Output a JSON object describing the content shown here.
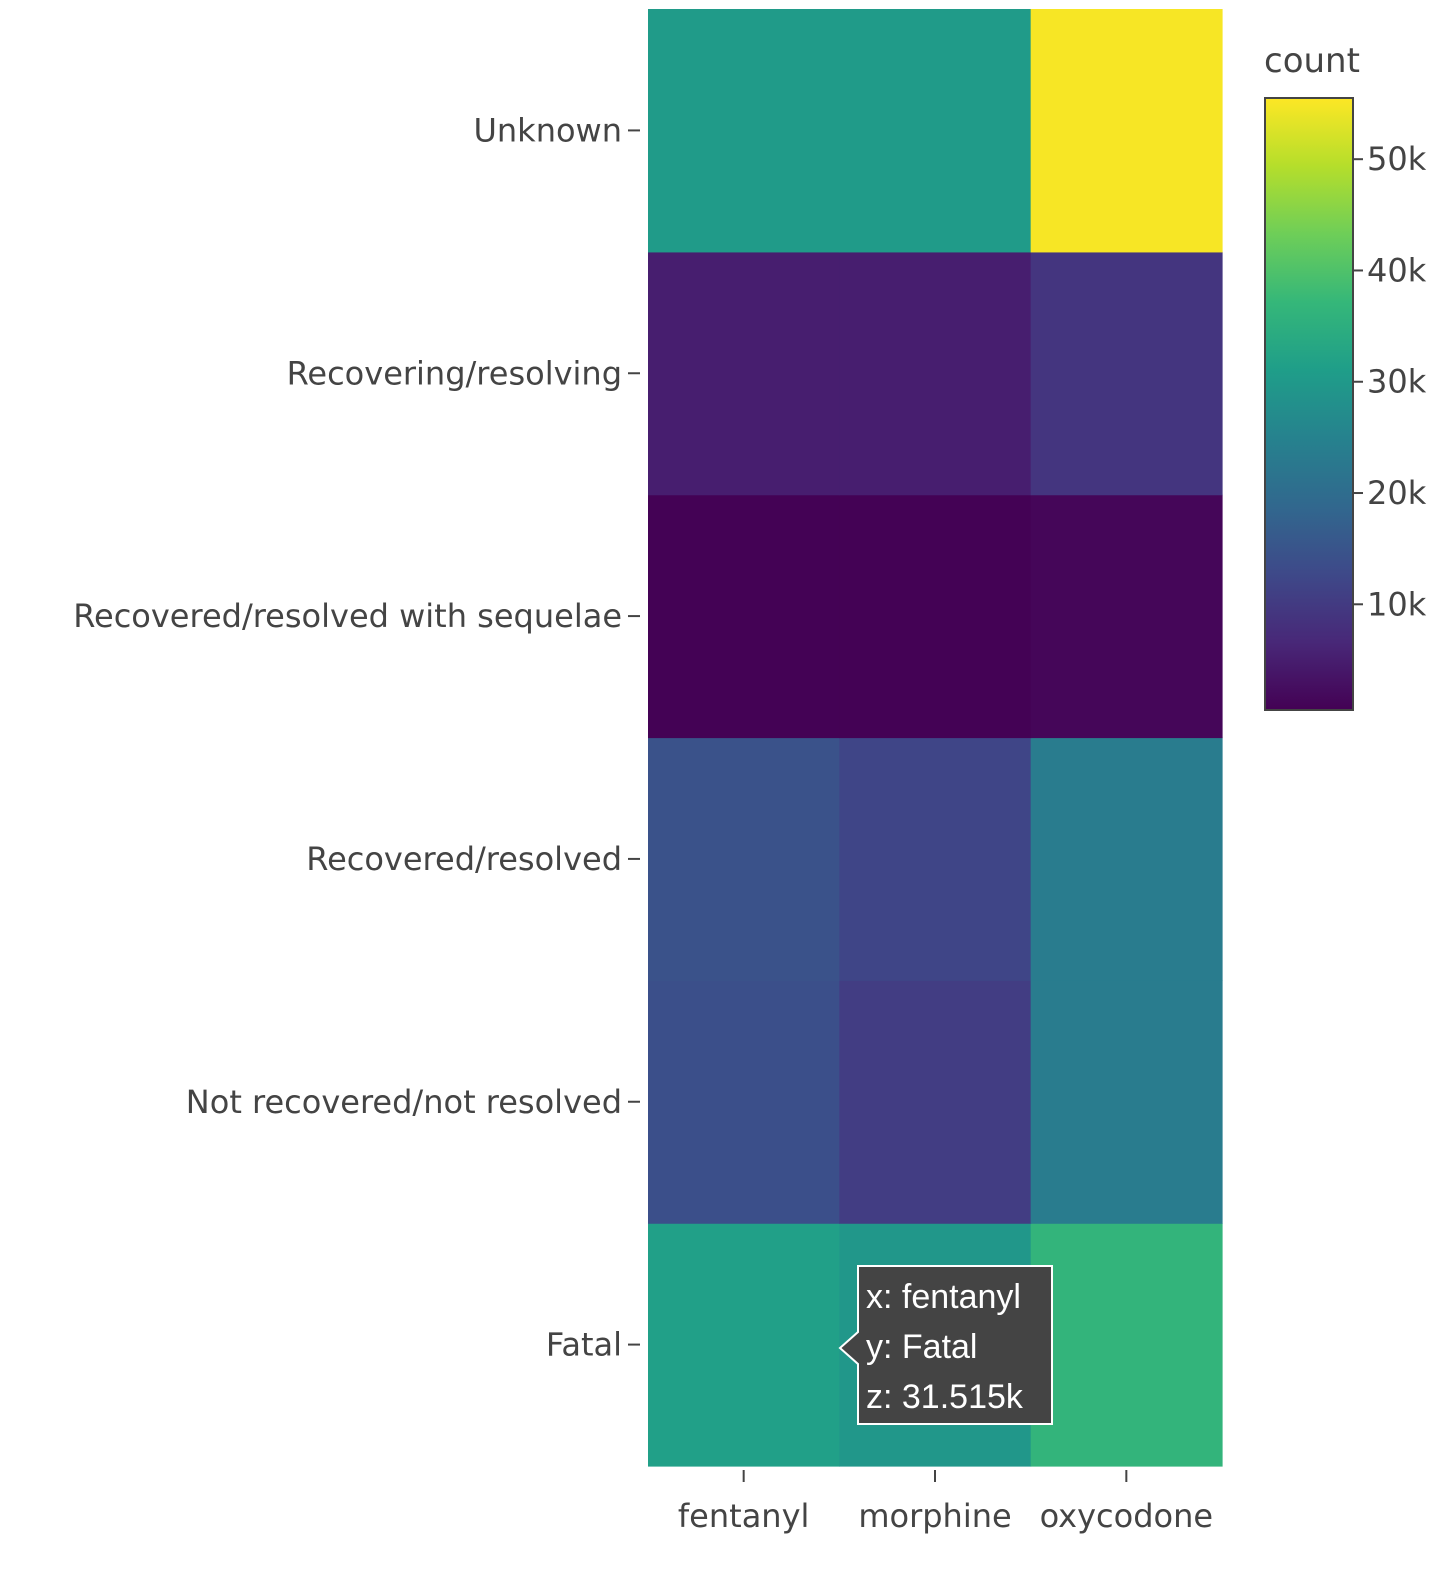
{
  "chart_data": {
    "type": "heatmap",
    "x": [
      "fentanyl",
      "morphine",
      "oxycodone"
    ],
    "y": [
      "Fatal",
      "Not recovered/not resolved",
      "Recovered/resolved",
      "Recovered/resolved with sequelae",
      "Recovering/resolving",
      "Unknown"
    ],
    "z": [
      [
        31515,
        29500,
        36500
      ],
      [
        14000,
        10500,
        23500
      ],
      [
        14500,
        12000,
        23500
      ],
      [
        600,
        600,
        1300
      ],
      [
        5000,
        5000,
        9000
      ],
      [
        30500,
        30500,
        55000
      ]
    ],
    "zlim": [
      500,
      55500
    ],
    "colorbar": {
      "title": "count",
      "ticks": [
        10000,
        20000,
        30000,
        40000,
        50000
      ],
      "tick_labels": [
        "10k",
        "20k",
        "30k",
        "40k",
        "50k"
      ]
    },
    "colorscale": [
      "#440154",
      "#482878",
      "#3e4989",
      "#31688e",
      "#26828e",
      "#1f9e89",
      "#35b779",
      "#6ece58",
      "#b5de2b",
      "#fde725"
    ],
    "hover": {
      "x_line": "x: fentanyl",
      "y_line": "y: Fatal",
      "z_line": "z: 31.515k",
      "bg_color": "#444444",
      "text_color": "#ffffff"
    }
  }
}
